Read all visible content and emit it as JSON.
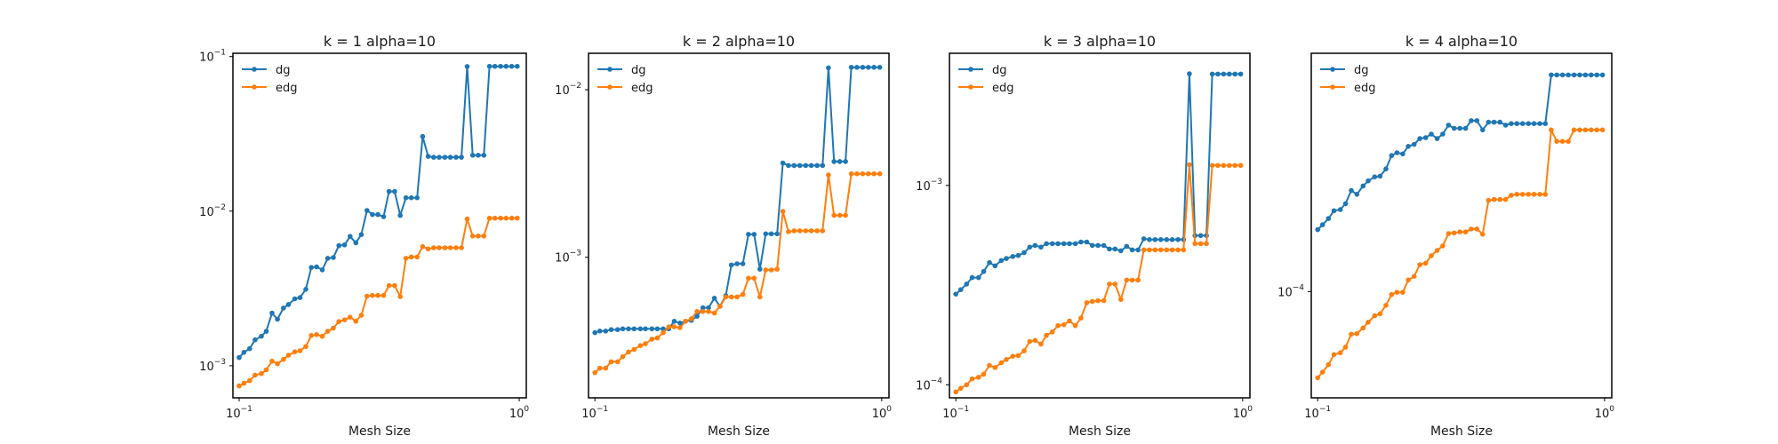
{
  "chart_data": [
    {
      "type": "line",
      "title": "k = 1 alpha=10",
      "xlabel": "Mesh Size",
      "xscale": "log",
      "yscale": "log",
      "xlim": [
        0.095,
        1.06
      ],
      "ylim": [
        0.00062,
        0.105
      ],
      "xticks": [
        {
          "v": 0.1,
          "base": "10",
          "exp": "−1"
        },
        {
          "v": 1,
          "base": "10",
          "exp": "0"
        }
      ],
      "yticks": [
        {
          "v": 0.001,
          "base": "10",
          "exp": "−3"
        },
        {
          "v": 0.01,
          "base": "10",
          "exp": "−2"
        },
        {
          "v": 0.1,
          "base": "10",
          "exp": "−1"
        }
      ],
      "legend": "top-left",
      "grid": false,
      "x": [
        0.1,
        0.104,
        0.109,
        0.114,
        0.12,
        0.125,
        0.131,
        0.137,
        0.144,
        0.15,
        0.158,
        0.165,
        0.173,
        0.181,
        0.189,
        0.198,
        0.207,
        0.217,
        0.227,
        0.238,
        0.249,
        0.261,
        0.273,
        0.286,
        0.299,
        0.313,
        0.328,
        0.343,
        0.359,
        0.376,
        0.394,
        0.412,
        0.432,
        0.452,
        0.473,
        0.495,
        0.518,
        0.543,
        0.568,
        0.595,
        0.622,
        0.652,
        0.682,
        0.714,
        0.748,
        0.783,
        0.819,
        0.858,
        0.898,
        0.94,
        0.984
      ],
      "series": [
        {
          "name": "dg",
          "color": "#1f77b4",
          "values": [
            0.00113,
            0.00122,
            0.00129,
            0.00147,
            0.00155,
            0.00167,
            0.00219,
            0.002,
            0.00236,
            0.00249,
            0.00271,
            0.00276,
            0.00312,
            0.00432,
            0.00436,
            0.00417,
            0.00495,
            0.00501,
            0.00598,
            0.00605,
            0.00687,
            0.00624,
            0.00705,
            0.0101,
            0.00951,
            0.00951,
            0.00921,
            0.0134,
            0.0134,
            0.00938,
            0.0122,
            0.0122,
            0.0122,
            0.0304,
            0.0226,
            0.0223,
            0.0223,
            0.0223,
            0.0223,
            0.0223,
            0.0223,
            0.0862,
            0.023,
            0.023,
            0.023,
            0.0864,
            0.0864,
            0.0864,
            0.0864,
            0.0864,
            0.0864
          ]
        },
        {
          "name": "edg",
          "color": "#ff7f0e",
          "values": [
            0.00074,
            0.00077,
            0.0008,
            0.00087,
            0.00089,
            0.00094,
            0.00107,
            0.00103,
            0.0011,
            0.00117,
            0.00123,
            0.00125,
            0.00133,
            0.00157,
            0.00159,
            0.00155,
            0.00167,
            0.00175,
            0.00193,
            0.00198,
            0.00206,
            0.00194,
            0.00212,
            0.00282,
            0.00285,
            0.00285,
            0.00285,
            0.0033,
            0.0033,
            0.0028,
            0.00495,
            0.00505,
            0.00505,
            0.0059,
            0.0057,
            0.0058,
            0.0058,
            0.0058,
            0.0058,
            0.0058,
            0.0058,
            0.0089,
            0.0069,
            0.0069,
            0.0069,
            0.009,
            0.009,
            0.009,
            0.009,
            0.009,
            0.009
          ]
        }
      ]
    },
    {
      "type": "line",
      "title": "k = 2 alpha=10",
      "xlabel": "Mesh Size",
      "xscale": "log",
      "yscale": "log",
      "xlim": [
        0.095,
        1.06
      ],
      "ylim": [
        0.000145,
        0.0165
      ],
      "xticks": [
        {
          "v": 0.1,
          "base": "10",
          "exp": "−1"
        },
        {
          "v": 1,
          "base": "10",
          "exp": "0"
        }
      ],
      "yticks": [
        {
          "v": 0.001,
          "base": "10",
          "exp": "−3"
        },
        {
          "v": 0.01,
          "base": "10",
          "exp": "−2"
        }
      ],
      "legend": "top-left",
      "grid": false,
      "x": [
        0.1,
        0.104,
        0.109,
        0.114,
        0.12,
        0.125,
        0.131,
        0.137,
        0.144,
        0.15,
        0.158,
        0.165,
        0.173,
        0.181,
        0.189,
        0.198,
        0.207,
        0.217,
        0.227,
        0.238,
        0.249,
        0.261,
        0.273,
        0.286,
        0.299,
        0.313,
        0.328,
        0.343,
        0.359,
        0.376,
        0.394,
        0.412,
        0.432,
        0.452,
        0.473,
        0.495,
        0.518,
        0.543,
        0.568,
        0.595,
        0.622,
        0.652,
        0.682,
        0.714,
        0.748,
        0.783,
        0.819,
        0.858,
        0.898,
        0.94,
        0.984
      ],
      "series": [
        {
          "name": "dg",
          "color": "#1f77b4",
          "values": [
            0.000355,
            0.000363,
            0.000363,
            0.00037,
            0.00037,
            0.000374,
            0.000374,
            0.000374,
            0.000374,
            0.000374,
            0.000374,
            0.000374,
            0.000374,
            0.000374,
            0.000415,
            0.000405,
            0.000415,
            0.00042,
            0.000445,
            0.0005,
            0.0005,
            0.00057,
            0.00051,
            0.00059,
            0.0009,
            0.000915,
            0.000915,
            0.00137,
            0.00137,
            0.00085,
            0.00138,
            0.00138,
            0.00138,
            0.00365,
            0.00353,
            0.00353,
            0.00353,
            0.00353,
            0.00353,
            0.00353,
            0.00353,
            0.0135,
            0.00373,
            0.00373,
            0.00373,
            0.0136,
            0.0136,
            0.0136,
            0.0136,
            0.0136,
            0.0136
          ]
        },
        {
          "name": "edg",
          "color": "#ff7f0e",
          "values": [
            0.000205,
            0.000218,
            0.000218,
            0.000238,
            0.000238,
            0.000255,
            0.000272,
            0.000282,
            0.000297,
            0.000305,
            0.000325,
            0.00033,
            0.000355,
            0.000385,
            0.000385,
            0.00038,
            0.000415,
            0.00043,
            0.000475,
            0.000475,
            0.000475,
            0.000465,
            0.00051,
            0.00058,
            0.00058,
            0.00058,
            0.0006,
            0.00075,
            0.00075,
            0.00058,
            0.00084,
            0.00084,
            0.00085,
            0.00188,
            0.00142,
            0.00144,
            0.00144,
            0.00144,
            0.00144,
            0.00144,
            0.00144,
            0.0031,
            0.00178,
            0.00178,
            0.00178,
            0.00315,
            0.00315,
            0.00315,
            0.00315,
            0.00315,
            0.00315
          ]
        }
      ]
    },
    {
      "type": "line",
      "title": "k = 3 alpha=10",
      "xlabel": "Mesh Size",
      "xscale": "log",
      "yscale": "log",
      "xlim": [
        0.095,
        1.06
      ],
      "ylim": [
        8.6e-05,
        0.0046
      ],
      "xticks": [
        {
          "v": 0.1,
          "base": "10",
          "exp": "−1"
        },
        {
          "v": 1,
          "base": "10",
          "exp": "0"
        }
      ],
      "yticks": [
        {
          "v": 0.0001,
          "base": "10",
          "exp": "−4"
        },
        {
          "v": 0.001,
          "base": "10",
          "exp": "−3"
        }
      ],
      "legend": "top-left",
      "grid": false,
      "x": [
        0.1,
        0.104,
        0.109,
        0.114,
        0.12,
        0.125,
        0.131,
        0.137,
        0.144,
        0.15,
        0.158,
        0.165,
        0.173,
        0.181,
        0.189,
        0.198,
        0.207,
        0.217,
        0.227,
        0.238,
        0.249,
        0.261,
        0.273,
        0.286,
        0.299,
        0.313,
        0.328,
        0.343,
        0.359,
        0.376,
        0.394,
        0.412,
        0.432,
        0.452,
        0.473,
        0.495,
        0.518,
        0.543,
        0.568,
        0.595,
        0.622,
        0.652,
        0.682,
        0.714,
        0.748,
        0.783,
        0.819,
        0.858,
        0.898,
        0.94,
        0.984
      ],
      "series": [
        {
          "name": "dg",
          "color": "#1f77b4",
          "values": [
            0.000285,
            0.0003,
            0.00032,
            0.000345,
            0.000345,
            0.00037,
            0.00041,
            0.000395,
            0.00042,
            0.00043,
            0.00044,
            0.000445,
            0.00046,
            0.00049,
            0.0005,
            0.00049,
            0.00051,
            0.00051,
            0.00051,
            0.00051,
            0.00051,
            0.00051,
            0.00052,
            0.00052,
            0.0005,
            0.0005,
            0.0005,
            0.00048,
            0.00048,
            0.00047,
            0.000495,
            0.000475,
            0.000475,
            0.00054,
            0.000535,
            0.000535,
            0.000535,
            0.000535,
            0.000535,
            0.000535,
            0.000535,
            0.00363,
            0.00056,
            0.00056,
            0.00056,
            0.00362,
            0.00362,
            0.00362,
            0.00362,
            0.00362,
            0.00362
          ]
        },
        {
          "name": "edg",
          "color": "#ff7f0e",
          "values": [
            9.2e-05,
            9.6e-05,
            0.0001,
            0.000107,
            0.000109,
            0.000113,
            0.000125,
            0.000122,
            0.000129,
            0.000134,
            0.000139,
            0.00014,
            0.000148,
            0.000165,
            0.000167,
            0.00016,
            0.000177,
            0.000184,
            0.000198,
            0.0002,
            0.000209,
            0.000198,
            0.000216,
            0.000258,
            0.000262,
            0.000264,
            0.000264,
            0.00032,
            0.00032,
            0.000268,
            0.000335,
            0.000335,
            0.000335,
            0.000475,
            0.000475,
            0.000475,
            0.000475,
            0.000475,
            0.000475,
            0.000475,
            0.000475,
            0.00127,
            0.00051,
            0.00051,
            0.00051,
            0.00126,
            0.00126,
            0.00126,
            0.00126,
            0.00126,
            0.00126
          ]
        }
      ]
    },
    {
      "type": "line",
      "title": "k = 4 alpha=10",
      "xlabel": "Mesh Size",
      "xscale": "log",
      "yscale": "log",
      "xlim": [
        0.095,
        1.06
      ],
      "ylim": [
        2.36e-05,
        0.00255
      ],
      "xticks": [
        {
          "v": 0.1,
          "base": "10",
          "exp": "−1"
        },
        {
          "v": 1,
          "base": "10",
          "exp": "0"
        }
      ],
      "yticks": [
        {
          "v": 0.0001,
          "base": "10",
          "exp": "−4"
        }
      ],
      "legend": "top-left",
      "grid": false,
      "x": [
        0.1,
        0.104,
        0.109,
        0.114,
        0.12,
        0.125,
        0.131,
        0.137,
        0.144,
        0.15,
        0.158,
        0.165,
        0.173,
        0.181,
        0.189,
        0.198,
        0.207,
        0.217,
        0.227,
        0.238,
        0.249,
        0.261,
        0.273,
        0.286,
        0.299,
        0.313,
        0.328,
        0.343,
        0.359,
        0.376,
        0.394,
        0.412,
        0.432,
        0.452,
        0.473,
        0.495,
        0.518,
        0.543,
        0.568,
        0.595,
        0.622,
        0.652,
        0.682,
        0.714,
        0.748,
        0.783,
        0.819,
        0.858,
        0.898,
        0.94,
        0.984
      ],
      "series": [
        {
          "name": "dg",
          "color": "#1f77b4",
          "values": [
            0.000232,
            0.000248,
            0.00027,
            0.0003,
            0.000305,
            0.00033,
            0.000395,
            0.000375,
            0.00042,
            0.00045,
            0.000475,
            0.00048,
            0.00053,
            0.000635,
            0.00066,
            0.00065,
            0.00072,
            0.00074,
            0.0008,
            0.00081,
            0.00085,
            0.0008,
            0.00085,
            0.00096,
            0.00092,
            0.00092,
            0.00092,
            0.00102,
            0.00102,
            0.0009,
            0.001,
            0.001,
            0.001,
            0.00096,
            0.00098,
            0.00098,
            0.00098,
            0.00098,
            0.00098,
            0.00098,
            0.00098,
            0.0019,
            0.0019,
            0.0019,
            0.0019,
            0.0019,
            0.0019,
            0.0019,
            0.0019,
            0.0019,
            0.0019
          ]
        },
        {
          "name": "edg",
          "color": "#ff7f0e",
          "values": [
            3.1e-05,
            3.35e-05,
            3.7e-05,
            4.25e-05,
            4.35e-05,
            4.7e-05,
            5.6e-05,
            5.65e-05,
            6.1e-05,
            6.6e-05,
            7.2e-05,
            7.4e-05,
            8.3e-05,
            9.6e-05,
            9.9e-05,
            9.9e-05,
            0.000117,
            0.000123,
            0.000144,
            0.000147,
            0.000163,
            0.000175,
            0.000186,
            0.00022,
            0.000222,
            0.000225,
            0.000225,
            0.000234,
            0.000234,
            0.000218,
            0.000345,
            0.00035,
            0.00035,
            0.00035,
            0.00037,
            0.000375,
            0.000375,
            0.000375,
            0.000375,
            0.000375,
            0.000375,
            0.0009,
            0.00077,
            0.00077,
            0.00077,
            0.0009,
            0.0009,
            0.0009,
            0.0009,
            0.0009,
            0.0009
          ]
        }
      ]
    }
  ]
}
